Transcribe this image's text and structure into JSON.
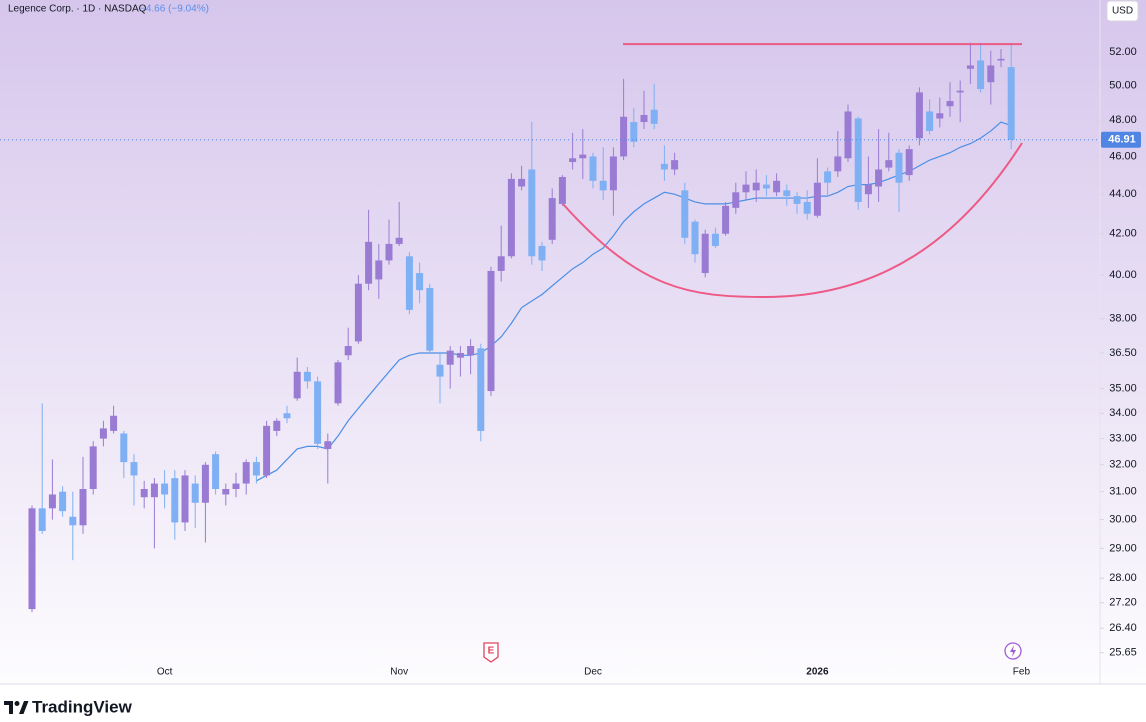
{
  "header": {
    "symbol": "Legence Corp. · 1D · NASDAQ",
    "change": "−4.66 (−9.04%)",
    "currency": "USD"
  },
  "markers": {
    "earnings": "E"
  },
  "brand": "TradingView",
  "chart_data": {
    "type": "candlestick",
    "log_scale": true,
    "categories": [
      null,
      null,
      null,
      null,
      null,
      null,
      null,
      null,
      null,
      null,
      null,
      null,
      null,
      "Oct",
      null,
      null,
      null,
      null,
      null,
      null,
      null,
      null,
      null,
      null,
      null,
      null,
      null,
      null,
      null,
      null,
      null,
      null,
      null,
      null,
      null,
      null,
      "Nov",
      null,
      null,
      null,
      null,
      null,
      null,
      null,
      null,
      null,
      null,
      null,
      null,
      null,
      null,
      null,
      null,
      null,
      null,
      "Dec",
      null,
      null,
      null,
      null,
      null,
      null,
      null,
      null,
      null,
      null,
      null,
      null,
      null,
      null,
      null,
      null,
      null,
      null,
      null,
      null,
      null,
      "2026",
      null,
      null,
      null,
      null,
      null,
      null,
      null,
      null,
      null,
      null,
      null,
      null,
      null,
      null,
      null,
      null,
      null,
      null,
      null,
      "Feb"
    ],
    "open": [
      27.0,
      30.4,
      30.4,
      31.0,
      30.1,
      29.8,
      31.1,
      33.0,
      33.3,
      33.2,
      32.1,
      30.8,
      30.8,
      31.3,
      31.5,
      29.9,
      31.3,
      30.6,
      32.4,
      30.9,
      31.1,
      31.3,
      32.1,
      31.6,
      33.3,
      34.0,
      34.6,
      35.7,
      35.3,
      32.6,
      34.4,
      36.4,
      37.0,
      39.6,
      39.8,
      40.7,
      41.5,
      40.9,
      40.1,
      39.4,
      36.0,
      36.0,
      36.3,
      36.4,
      36.7,
      34.9,
      40.2,
      40.9,
      44.4,
      45.3,
      41.4,
      41.7,
      43.5,
      45.7,
      45.9,
      46.0,
      44.7,
      44.2,
      46.0,
      47.9,
      47.9,
      48.6,
      45.6,
      45.3,
      44.2,
      42.6,
      40.1,
      42.0,
      42.0,
      43.3,
      44.1,
      44.2,
      44.5,
      44.1,
      44.2,
      43.9,
      43.6,
      42.9,
      45.2,
      45.2,
      45.9,
      48.1,
      44.0,
      44.4,
      45.4,
      46.2,
      45.0,
      47.0,
      48.5,
      48.1,
      48.8,
      49.6,
      51.0,
      51.5,
      50.2,
      51.5,
      51.1,
      null
    ],
    "high": [
      30.5,
      34.4,
      32.2,
      31.2,
      31.0,
      32.3,
      32.9,
      33.7,
      34.3,
      33.3,
      32.4,
      31.4,
      31.5,
      31.8,
      31.8,
      31.8,
      31.6,
      32.1,
      32.5,
      31.3,
      31.7,
      32.2,
      32.3,
      33.7,
      33.8,
      34.3,
      36.3,
      35.9,
      35.5,
      33.2,
      36.2,
      37.6,
      40.0,
      43.2,
      41.5,
      42.7,
      43.6,
      41.1,
      40.6,
      39.6,
      36.5,
      36.8,
      36.8,
      37.1,
      36.9,
      40.4,
      42.4,
      45.1,
      45.5,
      47.9,
      41.6,
      44.3,
      45.0,
      47.3,
      47.5,
      46.2,
      46.5,
      46.5,
      50.4,
      48.7,
      49.7,
      50.1,
      46.6,
      46.2,
      44.6,
      42.7,
      42.2,
      42.3,
      43.6,
      44.6,
      45.2,
      45.3,
      45.0,
      45.1,
      44.5,
      44.1,
      44.2,
      45.9,
      45.4,
      47.4,
      48.9,
      48.2,
      46.0,
      47.5,
      47.3,
      46.4,
      46.6,
      49.9,
      49.2,
      49.3,
      50.2,
      50.3,
      52.6,
      52.6,
      52.1,
      52.2,
      52.6,
      null
    ],
    "low": [
      26.9,
      29.5,
      30.0,
      30.1,
      28.6,
      29.5,
      30.9,
      32.7,
      33.2,
      31.5,
      30.5,
      30.4,
      29.0,
      30.4,
      29.3,
      29.6,
      29.7,
      29.2,
      30.9,
      30.5,
      30.8,
      30.9,
      31.3,
      31.5,
      33.1,
      33.6,
      34.5,
      35.0,
      32.6,
      31.3,
      34.3,
      36.2,
      36.9,
      39.3,
      38.9,
      40.5,
      41.4,
      38.2,
      38.7,
      36.5,
      34.4,
      35.0,
      35.5,
      35.6,
      32.9,
      34.7,
      39.7,
      40.8,
      44.2,
      40.5,
      40.2,
      41.5,
      43.4,
      45.3,
      44.8,
      44.3,
      43.7,
      42.9,
      45.8,
      46.5,
      47.5,
      47.5,
      44.7,
      45.0,
      41.5,
      40.6,
      39.9,
      41.3,
      41.9,
      43.0,
      43.7,
      43.6,
      43.9,
      43.9,
      43.4,
      43.0,
      42.7,
      42.8,
      43.9,
      44.9,
      45.7,
      43.2,
      43.3,
      43.6,
      45.2,
      43.1,
      44.7,
      46.6,
      47.2,
      47.6,
      48.2,
      47.9,
      50.1,
      49.6,
      48.9,
      51.1,
      46.4,
      null
    ],
    "close": [
      30.4,
      29.6,
      30.9,
      30.3,
      29.8,
      31.1,
      32.7,
      33.4,
      33.9,
      32.1,
      31.6,
      31.1,
      31.3,
      30.9,
      29.9,
      31.6,
      30.6,
      32.0,
      31.1,
      31.1,
      31.3,
      32.1,
      31.6,
      33.5,
      33.7,
      33.8,
      35.7,
      35.3,
      32.8,
      32.9,
      36.1,
      36.8,
      39.6,
      41.6,
      40.7,
      41.5,
      41.8,
      38.4,
      39.3,
      36.6,
      35.5,
      36.6,
      36.5,
      36.8,
      33.3,
      40.2,
      40.9,
      44.8,
      44.8,
      40.9,
      40.7,
      43.8,
      44.9,
      45.9,
      46.1,
      44.7,
      44.2,
      46.0,
      48.2,
      46.8,
      48.3,
      47.8,
      45.3,
      45.8,
      41.8,
      41.0,
      42.0,
      41.4,
      43.4,
      44.1,
      44.5,
      44.6,
      44.3,
      44.7,
      43.9,
      43.5,
      43.0,
      44.6,
      44.6,
      46.0,
      48.5,
      43.6,
      44.5,
      45.3,
      45.8,
      44.6,
      46.4,
      49.6,
      47.4,
      48.4,
      49.1,
      49.7,
      51.2,
      49.8,
      51.2,
      51.6,
      46.91,
      null
    ],
    "ma": [
      null,
      null,
      null,
      null,
      null,
      null,
      null,
      null,
      null,
      null,
      null,
      null,
      null,
      null,
      null,
      null,
      null,
      null,
      null,
      null,
      null,
      null,
      31.4,
      31.6,
      31.8,
      32.2,
      32.6,
      32.7,
      32.7,
      32.6,
      33.1,
      33.7,
      34.2,
      34.7,
      35.2,
      35.7,
      36.2,
      36.4,
      36.5,
      36.5,
      36.5,
      36.5,
      36.4,
      36.4,
      36.5,
      36.8,
      37.2,
      37.8,
      38.5,
      38.8,
      39.1,
      39.5,
      39.9,
      40.3,
      40.6,
      41.0,
      41.3,
      41.9,
      42.6,
      43.1,
      43.5,
      43.8,
      44.1,
      44.0,
      43.8,
      43.6,
      43.5,
      43.5,
      43.5,
      43.6,
      43.7,
      43.8,
      43.8,
      43.8,
      43.8,
      43.8,
      43.8,
      43.9,
      43.9,
      44.1,
      44.4,
      44.5,
      44.5,
      44.6,
      44.8,
      45.0,
      45.2,
      45.5,
      45.8,
      46.0,
      46.2,
      46.5,
      46.7,
      47.0,
      47.4,
      47.9,
      47.7,
      null
    ],
    "last_price": 46.91,
    "resistance_level": 52.5,
    "up_color": "#9a7bd3",
    "down_color": "#7eb0f3",
    "ma_color": "#4b8fe6",
    "level_color": "#ee5a86",
    "last_color": "#4f86e3",
    "ylim": [
      25.43,
      55.3
    ],
    "yticks": [
      {
        "value": 52,
        "label": "52.00"
      },
      {
        "value": 50,
        "label": "50.00"
      },
      {
        "value": 48,
        "label": "48.00"
      },
      {
        "value": 46,
        "label": "46.00"
      },
      {
        "value": 44,
        "label": "44.00"
      },
      {
        "value": 42,
        "label": "42.00"
      },
      {
        "value": 40,
        "label": "40.00"
      },
      {
        "value": 38,
        "label": "38.00"
      },
      {
        "value": 36.5,
        "label": "36.50"
      },
      {
        "value": 35,
        "label": "35.00"
      },
      {
        "value": 34,
        "label": "34.00"
      },
      {
        "value": 33,
        "label": "33.00"
      },
      {
        "value": 32,
        "label": "32.00"
      },
      {
        "value": 31,
        "label": "31.00"
      },
      {
        "value": 30,
        "label": "30.00"
      },
      {
        "value": 29,
        "label": "29.00"
      },
      {
        "value": 28,
        "label": "28.00"
      },
      {
        "value": 27.2,
        "label": "27.20"
      },
      {
        "value": 26.4,
        "label": "26.40"
      },
      {
        "value": 25.65,
        "label": "25.65"
      }
    ]
  }
}
